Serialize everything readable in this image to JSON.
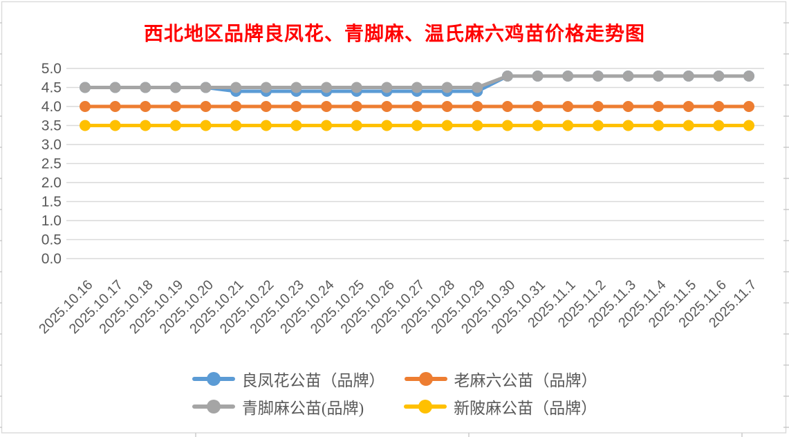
{
  "title": "西北地区品牌良凤花、青脚麻、温氏麻六鸡苗价格走势图",
  "title_color": "#FF0000",
  "chart_data": {
    "type": "line",
    "title": "西北地区品牌良凤花、青脚麻、温氏麻六鸡苗价格走势图",
    "xlabel": "",
    "ylabel": "",
    "ylim": [
      0.0,
      5.0
    ],
    "ytick_step": 0.5,
    "ytick_labels": [
      "0.0",
      "0.5",
      "1.0",
      "1.5",
      "2.0",
      "2.5",
      "3.0",
      "3.5",
      "4.0",
      "4.5",
      "5.0"
    ],
    "grid": true,
    "legend_position": "bottom",
    "axis_text_color": "#595959",
    "gridline_color": "#D9D9D9",
    "categories": [
      "2025.10.16",
      "2025.10.17",
      "2025.10.18",
      "2025.10.19",
      "2025.10.20",
      "2025.10.21",
      "2025.10.22",
      "2025.10.23",
      "2025.10.24",
      "2025.10.25",
      "2025.10.26",
      "2025.10.27",
      "2025.10.28",
      "2025.10.29",
      "2025.10.30",
      "2025.10.31",
      "2025.11.1",
      "2025.11.2",
      "2025.11.3",
      "2025.11.4",
      "2025.11.5",
      "2025.11.6",
      "2025.11.7"
    ],
    "series": [
      {
        "name": "良凤花公苗（品牌）",
        "color": "#5B9BD5",
        "values": [
          4.5,
          4.5,
          4.5,
          4.5,
          4.5,
          4.4,
          4.4,
          4.4,
          4.4,
          4.4,
          4.4,
          4.4,
          4.4,
          4.4,
          4.8,
          4.8,
          4.8,
          4.8,
          4.8,
          4.8,
          4.8,
          4.8,
          4.8
        ]
      },
      {
        "name": "老麻六公苗（品牌）",
        "color": "#ED7D31",
        "values": [
          4.0,
          4.0,
          4.0,
          4.0,
          4.0,
          4.0,
          4.0,
          4.0,
          4.0,
          4.0,
          4.0,
          4.0,
          4.0,
          4.0,
          4.0,
          4.0,
          4.0,
          4.0,
          4.0,
          4.0,
          4.0,
          4.0,
          4.0
        ]
      },
      {
        "name": "青脚麻公苗(品牌)",
        "color": "#A5A5A5",
        "values": [
          4.5,
          4.5,
          4.5,
          4.5,
          4.5,
          4.5,
          4.5,
          4.5,
          4.5,
          4.5,
          4.5,
          4.5,
          4.5,
          4.5,
          4.8,
          4.8,
          4.8,
          4.8,
          4.8,
          4.8,
          4.8,
          4.8,
          4.8
        ]
      },
      {
        "name": "新陂麻公苗（品牌）",
        "color": "#FFC000",
        "values": [
          3.5,
          3.5,
          3.5,
          3.5,
          3.5,
          3.5,
          3.5,
          3.5,
          3.5,
          3.5,
          3.5,
          3.5,
          3.5,
          3.5,
          3.5,
          3.5,
          3.5,
          3.5,
          3.5,
          3.5,
          3.5,
          3.5,
          3.5
        ]
      }
    ]
  }
}
